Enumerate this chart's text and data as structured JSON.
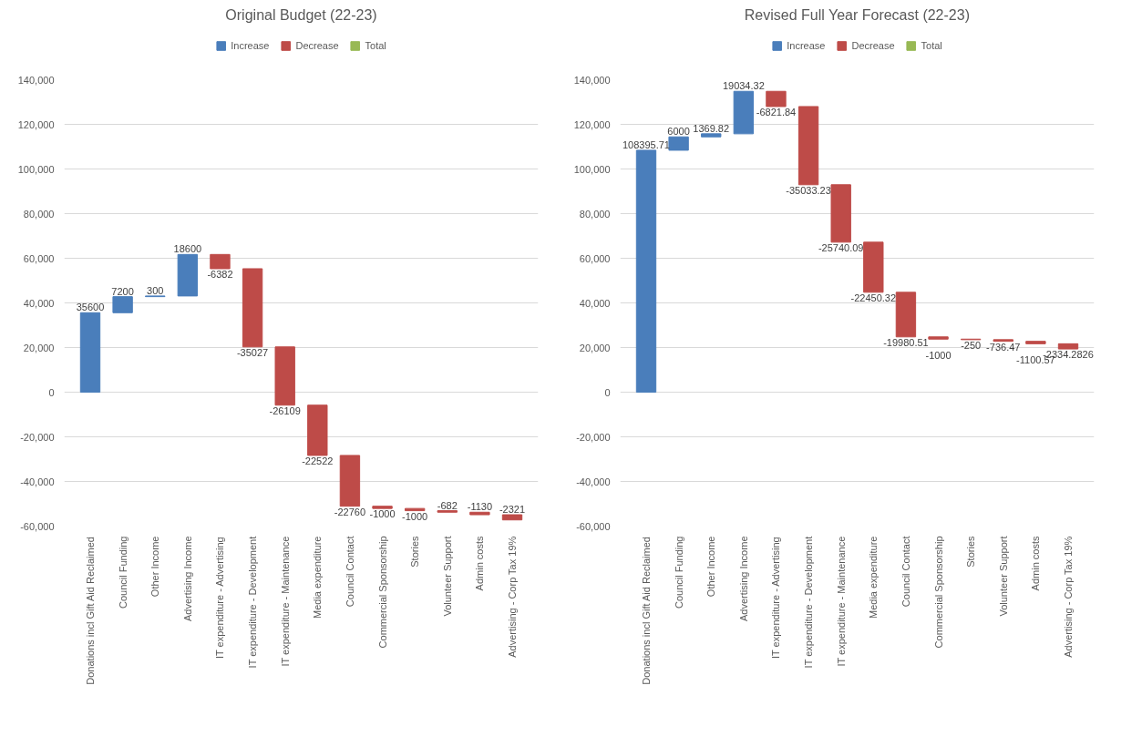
{
  "chart_data": [
    {
      "type": "bar",
      "title": "Original Budget (22-23)",
      "categories": [
        "Donations incl Gift Aid Reclaimed",
        "Council Funding",
        "Other Income",
        "Advertising Income",
        "IT expenditure - Advertising",
        "IT expenditure - Development",
        "IT expenditure - Maintenance",
        "Media expenditure",
        "Council Contact",
        "Commercial Sponsorship",
        "Stories",
        "Volunteer Support",
        "Admin costs",
        "Advertising - Corp Tax 19%"
      ],
      "series": [
        {
          "name": "Increase",
          "color": "#4a7ebb",
          "values": [
            35600,
            7200,
            300,
            18600,
            null,
            null,
            null,
            null,
            null,
            null,
            null,
            null,
            null,
            null
          ],
          "base": [
            0,
            35600,
            42800,
            43100,
            null,
            null,
            null,
            null,
            null,
            null,
            null,
            null,
            null,
            null
          ]
        },
        {
          "name": "Decrease",
          "color": "#be4b48",
          "values": [
            null,
            null,
            null,
            null,
            -6382,
            -35027,
            -26109,
            -22522,
            -22760,
            -1000,
            -1000,
            -682,
            -1130,
            -2321
          ],
          "base": [
            null,
            null,
            null,
            null,
            61700,
            55318,
            20291,
            -5818,
            -28340,
            -51100,
            -52100,
            -53100,
            -53782,
            -54912
          ]
        },
        {
          "name": "Total",
          "color": "#98b954",
          "values": [
            null,
            null,
            null,
            null,
            null,
            null,
            null,
            null,
            null,
            null,
            null,
            null,
            null,
            null
          ]
        }
      ],
      "ylim": [
        -60000,
        140000
      ],
      "yticks": [
        {
          "value": -60000,
          "label": "-60,000"
        },
        {
          "value": -40000,
          "label": "-40,000"
        },
        {
          "value": -20000,
          "label": "-20,000"
        },
        0,
        {
          "value": 20000,
          "label": "20,000"
        },
        {
          "value": 40000,
          "label": "40,000"
        },
        {
          "value": 60000,
          "label": "60,000"
        },
        {
          "value": 80000,
          "label": "80,000"
        },
        {
          "value": 100000,
          "label": "100,000"
        },
        {
          "value": 120000,
          "label": "120,000"
        },
        {
          "value": 140000,
          "label": "140,000"
        }
      ],
      "grid": "y",
      "legend": "top",
      "data_labels": true
    },
    {
      "type": "bar",
      "title": "Revised Full Year Forecast (22-23)",
      "categories": [
        "Donations incl Gift Aid Reclaimed",
        "Council Funding",
        "Other Income",
        "Advertising Income",
        "IT expenditure - Advertising",
        "IT expenditure - Development",
        "IT expenditure - Maintenance",
        "Media expenditure",
        "Council Contact",
        "Commercial Sponsorship",
        "Stories",
        "Volunteer Support",
        "Admin costs",
        "Advertising - Corp Tax 19%"
      ],
      "series": [
        {
          "name": "Increase",
          "color": "#4a7ebb",
          "values": [
            108395.71,
            6000,
            1369.82,
            19034.32,
            null,
            null,
            null,
            null,
            null,
            null,
            null,
            null,
            null,
            null
          ],
          "base": [
            0,
            108395.71,
            114395.71,
            115765.53,
            null,
            null,
            null,
            null,
            null,
            null,
            null,
            null,
            null,
            null
          ]
        },
        {
          "name": "Decrease",
          "color": "#be4b48",
          "values": [
            null,
            null,
            null,
            null,
            -6821.84,
            -35033.23,
            -25740.09,
            -22450.32,
            -19980.51,
            -1000,
            -250,
            -736.47,
            -1100.57,
            -2334.2826
          ],
          "base": [
            null,
            null,
            null,
            null,
            134799.85,
            127978.01,
            92944.78,
            67204.69,
            44754.37,
            24773.86,
            23773.86,
            23523.86,
            22787.39,
            21686.82
          ]
        },
        {
          "name": "Total",
          "color": "#98b954",
          "values": [
            null,
            null,
            null,
            null,
            null,
            null,
            null,
            null,
            null,
            null,
            null,
            null,
            null,
            null
          ]
        }
      ],
      "ylim": [
        -60000,
        140000
      ],
      "yticks": [
        {
          "value": -60000,
          "label": "-60,000"
        },
        {
          "value": -40000,
          "label": "-40,000"
        },
        {
          "value": -20000,
          "label": "-20,000"
        },
        0,
        {
          "value": 20000,
          "label": "20,000"
        },
        {
          "value": 40000,
          "label": "40,000"
        },
        {
          "value": 60000,
          "label": "60,000"
        },
        {
          "value": 80000,
          "label": "80,000"
        },
        {
          "value": 100000,
          "label": "100,000"
        },
        {
          "value": 120000,
          "label": "120,000"
        },
        {
          "value": 140000,
          "label": "140,000"
        }
      ],
      "grid": "y",
      "legend": "top",
      "data_labels": true
    }
  ]
}
